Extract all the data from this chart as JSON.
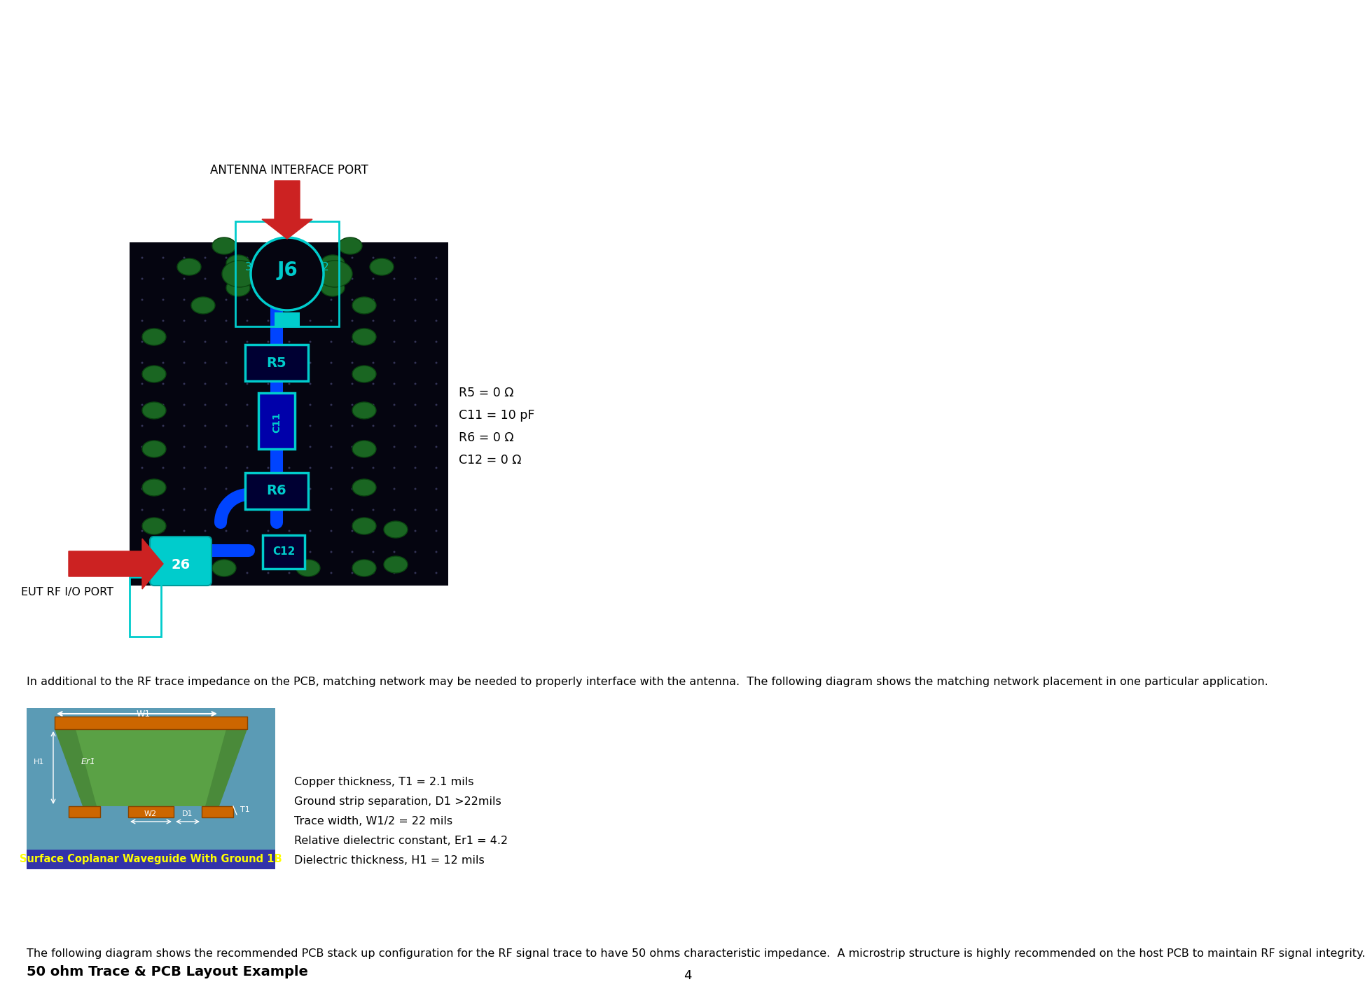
{
  "title": "50 ohm Trace & PCB Layout Example",
  "para1": "The following diagram shows the recommended PCB stack up configuration for the RF signal trace to have 50 ohms characteristic impedance.  A microstrip structure is highly recommended on the host PCB to maintain RF signal integrity.",
  "spec_lines": [
    "Dielectric thickness, H1 = 12 mils",
    "Relative dielectric constant, Er1 = 4.2",
    "Trace width, W1/2 = 22 mils",
    "Ground strip separation, D1 >22mils",
    "Copper thickness, T1 = 2.1 mils"
  ],
  "para2": "In additional to the RF trace impedance on the PCB, matching network may be needed to properly interface with the antenna.  The following diagram shows the matching network placement in one particular application.",
  "legend_lines": [
    "C12 = 0 Ω",
    "R6 = 0 Ω",
    "C11 = 10 pF",
    "R5 = 0 Ω"
  ],
  "eut_label": "EUT RF I/O PORT",
  "antenna_label": "ANTENNA INTERFACE PORT",
  "page_num": "4",
  "bg_color": "#ffffff",
  "text_color": "#000000",
  "pcb_banner_color": "#3333aa",
  "pcb_banner_text": "Surface Coplanar Waveguide With Ground 1B",
  "pcb_banner_text_color": "#ffff00",
  "trace_color": "#0044ff",
  "cyan_color": "#00cccc",
  "green_pad_color": "#1a6622",
  "red_arrow_color": "#cc2222"
}
